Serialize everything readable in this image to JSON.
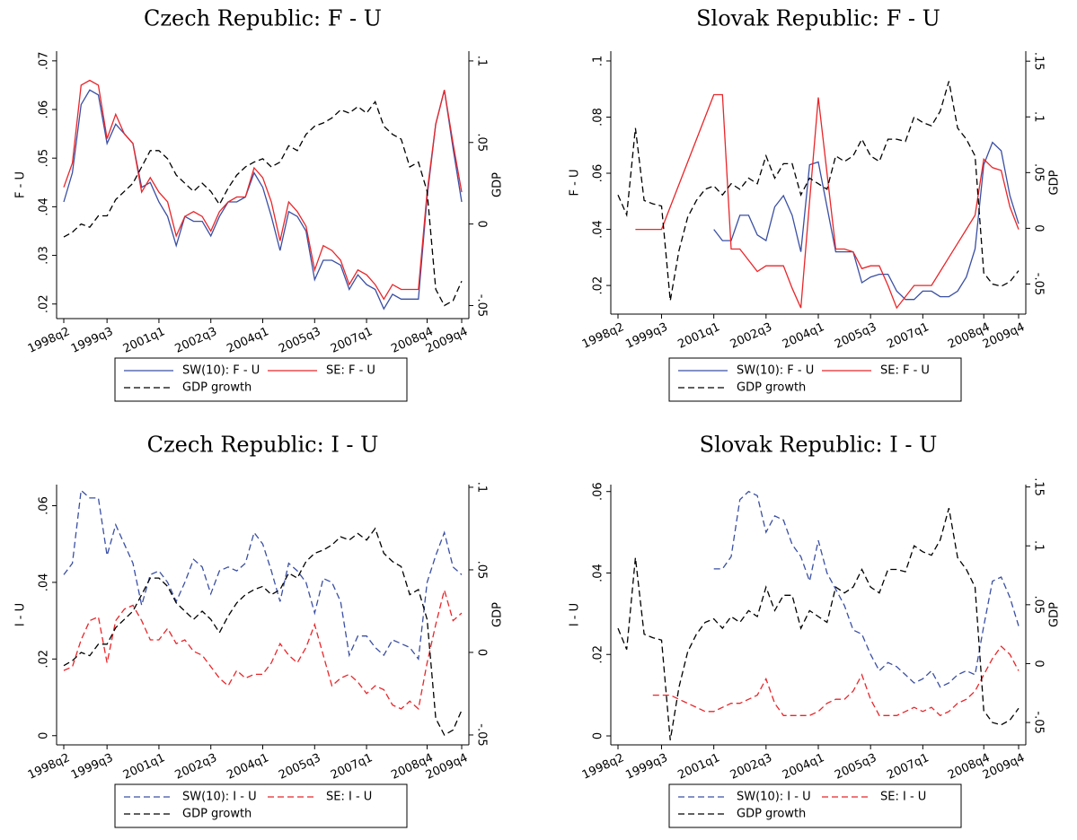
{
  "chart_data": [
    {
      "type": "line",
      "title": "Czech Republic: F - U",
      "ylabel": "F - U",
      "y2label": "GDP",
      "categories": [
        "1998q2",
        null,
        null,
        null,
        null,
        "1999q3",
        null,
        null,
        null,
        null,
        null,
        "2001q1",
        null,
        null,
        null,
        null,
        null,
        "2002q3",
        null,
        null,
        null,
        null,
        null,
        "2004q1",
        null,
        null,
        null,
        null,
        null,
        "2005q3",
        null,
        null,
        null,
        null,
        null,
        "2007q1",
        null,
        null,
        null,
        null,
        null,
        null,
        "2008q4",
        null,
        null,
        null,
        "2009q4"
      ],
      "ylim": [
        0.017,
        0.072
      ],
      "yticks": [
        {
          "value": 0.02,
          "label": ".02"
        },
        {
          "value": 0.03,
          "label": ".03"
        },
        {
          "value": 0.04,
          "label": ".04"
        },
        {
          "value": 0.05,
          "label": ".05"
        },
        {
          "value": 0.06,
          "label": ".06"
        },
        {
          "value": 0.07,
          "label": ".07"
        }
      ],
      "y2lim": [
        -0.058,
        0.106
      ],
      "y2ticks": [
        {
          "value": -0.05,
          "label": "-.05"
        },
        0,
        {
          "value": 0.05,
          "label": ".05"
        },
        {
          "value": 0.1,
          "label": ".1"
        }
      ],
      "series": [
        {
          "name": "SW(10): F - U",
          "color": "#3a4fa3",
          "dashed": false,
          "values": [
            0.041,
            0.047,
            0.061,
            0.064,
            0.063,
            0.053,
            0.057,
            0.055,
            0.053,
            0.044,
            0.045,
            0.041,
            0.038,
            0.032,
            0.038,
            0.037,
            0.037,
            0.034,
            0.038,
            0.041,
            0.041,
            0.042,
            0.047,
            0.044,
            0.038,
            0.031,
            0.039,
            0.038,
            0.035,
            0.025,
            0.029,
            0.029,
            0.028,
            0.023,
            0.026,
            0.024,
            0.023,
            0.019,
            0.022,
            0.021,
            0.021,
            0.021,
            0.042,
            0.057,
            0.064,
            0.052,
            0.041
          ]
        },
        {
          "name": "SE: F - U",
          "color": "#e8262a",
          "dashed": false,
          "values": [
            0.044,
            0.049,
            0.065,
            0.066,
            0.065,
            0.054,
            0.059,
            0.055,
            0.053,
            0.043,
            0.046,
            0.043,
            0.041,
            0.034,
            0.038,
            0.039,
            0.038,
            0.035,
            0.039,
            0.041,
            0.042,
            0.042,
            0.048,
            0.046,
            0.041,
            0.033,
            0.041,
            0.039,
            0.036,
            0.027,
            0.032,
            0.031,
            0.029,
            0.024,
            0.027,
            0.026,
            0.024,
            0.021,
            0.024,
            0.023,
            0.023,
            0.023,
            0.043,
            0.057,
            0.064,
            0.053,
            0.043
          ]
        },
        {
          "name": "GDP growth",
          "color": "#000000",
          "dashed": true,
          "axis": "y2",
          "values": [
            -0.008,
            -0.005,
            0.0,
            -0.002,
            0.005,
            0.005,
            0.015,
            0.02,
            0.025,
            0.035,
            0.045,
            0.045,
            0.04,
            0.03,
            0.025,
            0.02,
            0.025,
            0.02,
            0.012,
            0.022,
            0.03,
            0.035,
            0.038,
            0.04,
            0.035,
            0.038,
            0.048,
            0.045,
            0.055,
            0.06,
            0.062,
            0.065,
            0.07,
            0.068,
            0.072,
            0.068,
            0.075,
            0.06,
            0.055,
            0.052,
            0.035,
            0.038,
            0.02,
            -0.04,
            -0.05,
            -0.047,
            -0.035
          ]
        }
      ]
    },
    {
      "type": "line",
      "title": "Slovak Republic: F - U",
      "ylabel": "F - U",
      "y2label": "GDP",
      "categories": [
        "1998q2",
        null,
        null,
        null,
        null,
        "1999q3",
        null,
        null,
        null,
        null,
        null,
        "2001q1",
        null,
        null,
        null,
        null,
        null,
        "2002q3",
        null,
        null,
        null,
        null,
        null,
        "2004q1",
        null,
        null,
        null,
        null,
        null,
        "2005q3",
        null,
        null,
        null,
        null,
        null,
        "2007q1",
        null,
        null,
        null,
        null,
        null,
        null,
        "2008q4",
        null,
        null,
        null,
        "2009q4"
      ],
      "ylim": [
        0.0098,
        0.1035
      ],
      "yticks": [
        {
          "value": 0.02,
          "label": ".02"
        },
        {
          "value": 0.04,
          "label": ".04"
        },
        {
          "value": 0.06,
          "label": ".06"
        },
        {
          "value": 0.08,
          "label": ".08"
        },
        {
          "value": 0.1,
          "label": ".1"
        }
      ],
      "y2lim": [
        -0.077,
        0.159
      ],
      "y2ticks": [
        {
          "value": -0.05,
          "label": "-.05"
        },
        0,
        {
          "value": 0.05,
          "label": ".05"
        },
        {
          "value": 0.1,
          "label": ".1"
        },
        {
          "value": 0.15,
          "label": ".15"
        }
      ],
      "series": [
        {
          "name": "SW(10): F - U",
          "color": "#3a4fa3",
          "dashed": false,
          "values": [
            null,
            null,
            null,
            null,
            null,
            null,
            null,
            null,
            null,
            null,
            null,
            0.04,
            0.036,
            0.036,
            0.045,
            0.045,
            0.038,
            0.036,
            0.048,
            0.052,
            0.045,
            0.032,
            0.063,
            0.064,
            0.048,
            0.032,
            0.032,
            0.032,
            0.021,
            0.023,
            0.024,
            0.024,
            0.018,
            0.015,
            0.015,
            0.018,
            0.018,
            0.016,
            0.016,
            0.018,
            0.023,
            0.033,
            0.063,
            0.071,
            0.068,
            0.052,
            0.042
          ]
        },
        {
          "name": "SE: F - U",
          "color": "#e8262a",
          "dashed": false,
          "values": [
            null,
            null,
            0.04,
            0.04,
            0.04,
            0.04,
            0.048,
            0.056,
            0.064,
            0.072,
            0.08,
            0.088,
            0.088,
            0.033,
            0.033,
            0.029,
            0.025,
            0.027,
            0.027,
            0.027,
            0.019,
            0.012,
            0.05,
            0.087,
            0.06,
            0.033,
            0.033,
            0.032,
            0.026,
            0.027,
            0.027,
            0.02,
            0.012,
            0.016,
            0.02,
            0.02,
            0.02,
            0.025,
            0.03,
            0.035,
            0.04,
            0.045,
            0.065,
            0.062,
            0.061,
            0.048,
            0.04
          ]
        },
        {
          "name": "GDP growth",
          "color": "#000000",
          "dashed": true,
          "axis": "y2",
          "values": [
            0.03,
            0.012,
            0.09,
            0.025,
            0.022,
            0.02,
            -0.065,
            -0.02,
            0.01,
            0.025,
            0.035,
            0.038,
            0.03,
            0.04,
            0.035,
            0.045,
            0.04,
            0.065,
            0.045,
            0.058,
            0.058,
            0.03,
            0.045,
            0.04,
            0.035,
            0.065,
            0.06,
            0.065,
            0.08,
            0.065,
            0.06,
            0.08,
            0.08,
            0.078,
            0.1,
            0.095,
            0.092,
            0.105,
            0.132,
            0.09,
            0.08,
            0.065,
            -0.04,
            -0.05,
            -0.052,
            -0.048,
            -0.038
          ]
        }
      ]
    },
    {
      "type": "line",
      "title": "Czech Republic: I - U",
      "ylabel": "I - U",
      "y2label": "GDP",
      "categories": [
        "1998q2",
        null,
        null,
        null,
        null,
        "1999q3",
        null,
        null,
        null,
        null,
        null,
        "2001q1",
        null,
        null,
        null,
        null,
        null,
        "2002q3",
        null,
        null,
        null,
        null,
        null,
        "2004q1",
        null,
        null,
        null,
        null,
        null,
        "2005q3",
        null,
        null,
        null,
        null,
        null,
        "2007q1",
        null,
        null,
        null,
        null,
        null,
        null,
        "2008q4",
        null,
        null,
        null,
        "2009q4"
      ],
      "ylim": [
        -0.0024,
        0.0655
      ],
      "yticks": [
        0,
        {
          "value": 0.02,
          "label": ".02"
        },
        {
          "value": 0.04,
          "label": ".04"
        },
        {
          "value": 0.06,
          "label": ".06"
        }
      ],
      "y2lim": [
        -0.056,
        0.1016
      ],
      "y2ticks": [
        {
          "value": -0.05,
          "label": "-.05"
        },
        0,
        {
          "value": 0.05,
          "label": ".05"
        },
        {
          "value": 0.1,
          "label": ".1"
        }
      ],
      "series": [
        {
          "name": "SW(10): I - U",
          "color": "#3a4fa3",
          "dashed": true,
          "values": [
            0.042,
            0.045,
            0.064,
            0.062,
            0.062,
            0.047,
            0.055,
            0.05,
            0.045,
            0.034,
            0.042,
            0.043,
            0.04,
            0.035,
            0.04,
            0.046,
            0.044,
            0.037,
            0.043,
            0.044,
            0.043,
            0.045,
            0.053,
            0.05,
            0.043,
            0.035,
            0.045,
            0.043,
            0.04,
            0.032,
            0.041,
            0.04,
            0.035,
            0.021,
            0.026,
            0.026,
            0.023,
            0.021,
            0.025,
            0.024,
            0.023,
            0.02,
            0.04,
            0.047,
            0.053,
            0.044,
            0.042
          ]
        },
        {
          "name": "SE: I - U",
          "color": "#e8262a",
          "dashed": true,
          "values": [
            0.017,
            0.018,
            0.025,
            0.03,
            0.031,
            0.019,
            0.03,
            0.033,
            0.034,
            0.03,
            0.025,
            0.025,
            0.028,
            0.024,
            0.025,
            0.022,
            0.021,
            0.018,
            0.015,
            0.013,
            0.017,
            0.015,
            0.016,
            0.016,
            0.019,
            0.024,
            0.021,
            0.019,
            0.023,
            0.029,
            0.021,
            0.013,
            0.015,
            0.016,
            0.014,
            0.011,
            0.013,
            0.012,
            0.008,
            0.007,
            0.009,
            0.007,
            0.019,
            0.029,
            0.038,
            0.03,
            0.032
          ]
        },
        {
          "name": "GDP growth",
          "color": "#000000",
          "dashed": true,
          "axis": "y2",
          "values": [
            -0.008,
            -0.005,
            0.0,
            -0.002,
            0.005,
            0.005,
            0.015,
            0.02,
            0.025,
            0.035,
            0.045,
            0.045,
            0.04,
            0.03,
            0.025,
            0.02,
            0.025,
            0.02,
            0.012,
            0.022,
            0.03,
            0.035,
            0.038,
            0.04,
            0.035,
            0.038,
            0.048,
            0.045,
            0.055,
            0.06,
            0.062,
            0.065,
            0.07,
            0.068,
            0.072,
            0.068,
            0.075,
            0.06,
            0.055,
            0.052,
            0.035,
            0.038,
            0.02,
            -0.04,
            -0.05,
            -0.047,
            -0.035
          ]
        }
      ]
    },
    {
      "type": "line",
      "title": "Slovak Republic: I - U",
      "ylabel": "I - U",
      "y2label": "GDP",
      "categories": [
        "1998q2",
        null,
        null,
        null,
        null,
        "1999q3",
        null,
        null,
        null,
        null,
        null,
        "2001q1",
        null,
        null,
        null,
        null,
        null,
        "2002q3",
        null,
        null,
        null,
        null,
        null,
        "2004q1",
        null,
        null,
        null,
        null,
        null,
        "2005q3",
        null,
        null,
        null,
        null,
        null,
        "2007q1",
        null,
        null,
        null,
        null,
        null,
        null,
        "2008q4",
        null,
        null,
        null,
        "2009q4"
      ],
      "ylim": [
        -0.0022,
        0.0617
      ],
      "yticks": [
        0,
        {
          "value": 0.02,
          "label": ".02"
        },
        {
          "value": 0.04,
          "label": ".04"
        },
        {
          "value": 0.06,
          "label": ".06"
        }
      ],
      "y2lim": [
        -0.069,
        0.152
      ],
      "y2ticks": [
        {
          "value": -0.05,
          "label": "-.05"
        },
        0,
        {
          "value": 0.05,
          "label": ".05"
        },
        {
          "value": 0.1,
          "label": ".1"
        },
        {
          "value": 0.15,
          "label": ".15"
        }
      ],
      "series": [
        {
          "name": "SW(10): I - U",
          "color": "#3a4fa3",
          "dashed": true,
          "values": [
            null,
            null,
            null,
            null,
            null,
            null,
            null,
            null,
            null,
            null,
            null,
            0.041,
            0.041,
            0.044,
            0.058,
            0.06,
            0.059,
            0.05,
            0.054,
            0.053,
            0.047,
            0.044,
            0.038,
            0.048,
            0.04,
            0.036,
            0.032,
            0.026,
            0.025,
            0.02,
            0.016,
            0.018,
            0.017,
            0.015,
            0.013,
            0.014,
            0.016,
            0.012,
            0.013,
            0.015,
            0.016,
            0.015,
            0.027,
            0.038,
            0.039,
            0.034,
            0.027
          ]
        },
        {
          "name": "SE: I - U",
          "color": "#e8262a",
          "dashed": true,
          "values": [
            null,
            null,
            null,
            null,
            0.01,
            0.01,
            0.01,
            0.009,
            0.008,
            0.007,
            0.006,
            0.006,
            0.007,
            0.008,
            0.008,
            0.009,
            0.01,
            0.014,
            0.008,
            0.005,
            0.005,
            0.005,
            0.005,
            0.006,
            0.008,
            0.009,
            0.009,
            0.011,
            0.015,
            0.009,
            0.005,
            0.005,
            0.005,
            0.006,
            0.007,
            0.006,
            0.007,
            0.005,
            0.006,
            0.008,
            0.009,
            0.011,
            0.015,
            0.019,
            0.022,
            0.02,
            0.016
          ]
        },
        {
          "name": "GDP growth",
          "color": "#000000",
          "dashed": true,
          "axis": "y2",
          "values": [
            0.03,
            0.012,
            0.09,
            0.025,
            0.022,
            0.02,
            -0.065,
            -0.02,
            0.01,
            0.025,
            0.035,
            0.038,
            0.03,
            0.04,
            0.035,
            0.045,
            0.04,
            0.065,
            0.045,
            0.058,
            0.058,
            0.03,
            0.045,
            0.04,
            0.035,
            0.065,
            0.06,
            0.065,
            0.08,
            0.065,
            0.06,
            0.08,
            0.08,
            0.078,
            0.1,
            0.095,
            0.092,
            0.105,
            0.132,
            0.09,
            0.08,
            0.065,
            -0.04,
            -0.05,
            -0.052,
            -0.048,
            -0.038
          ]
        }
      ]
    }
  ]
}
